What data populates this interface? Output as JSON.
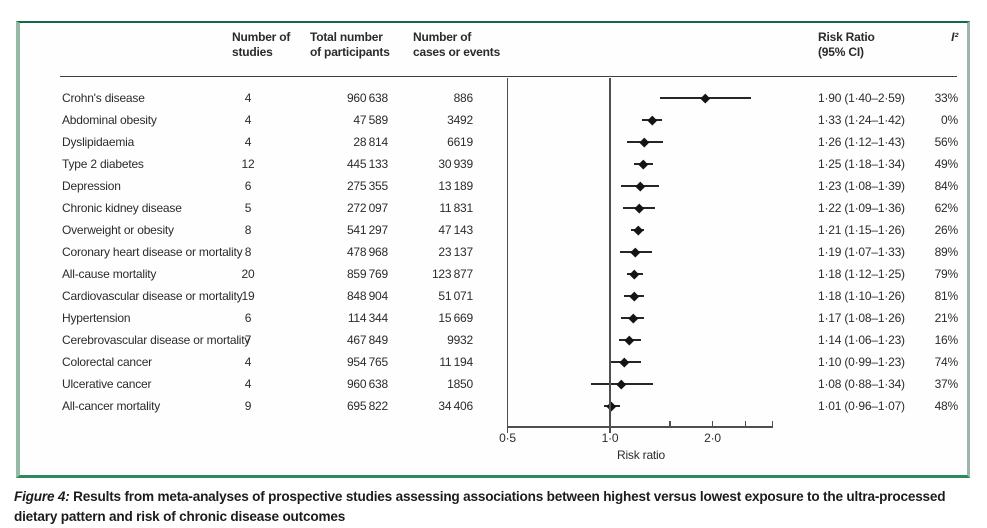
{
  "header": {
    "col_studies": "Number of\nstudies",
    "col_participants": "Total number\nof participants",
    "col_cases": "Number of\ncases or events",
    "col_rr": "Risk Ratio\n(95% CI)",
    "col_i2": "I²"
  },
  "caption": {
    "prefix": "Figure 4:",
    "text": " Results from meta-analyses of prospective studies assessing associations between highest versus lowest exposure to the ultra-processed dietary pattern and risk of chronic disease outcomes"
  },
  "colors": {
    "frame_top": "#11694a",
    "frame_sides": "#92bca6",
    "frame_bottom": "#2c8a5c",
    "line": "#4f4f4f",
    "marker": "#141414",
    "text": "#2b2b2b"
  },
  "chart_data": {
    "type": "scatter",
    "subtype": "forest-plot",
    "xlabel": "Risk ratio",
    "x_scale": "log",
    "xlim": [
      0.5,
      3.0
    ],
    "ref_line": 1.0,
    "ticks": [
      {
        "v": 0.5,
        "label": "0·5",
        "full": true
      },
      {
        "v": 1.0,
        "label": "1·0",
        "full": true
      },
      {
        "v": 1.5
      },
      {
        "v": 2.0,
        "label": "2·0"
      },
      {
        "v": 2.5
      },
      {
        "v": 3.0
      }
    ],
    "rows": [
      {
        "label": "Crohn's disease",
        "studies": "4",
        "participants": "960 638",
        "cases": "886",
        "rr": 1.9,
        "lo": 1.4,
        "hi": 2.59,
        "rr_ci": "1·90 (1·40–2·59)",
        "i2": "33%"
      },
      {
        "label": "Abdominal obesity",
        "studies": "4",
        "participants": "47 589",
        "cases": "3492",
        "rr": 1.33,
        "lo": 1.24,
        "hi": 1.42,
        "rr_ci": "1·33 (1·24–1·42)",
        "i2": "0%"
      },
      {
        "label": "Dyslipidaemia",
        "studies": "4",
        "participants": "28 814",
        "cases": "6619",
        "rr": 1.26,
        "lo": 1.12,
        "hi": 1.43,
        "rr_ci": "1·26 (1·12–1·43)",
        "i2": "56%"
      },
      {
        "label": "Type 2 diabetes",
        "studies": "12",
        "participants": "445 133",
        "cases": "30 939",
        "rr": 1.25,
        "lo": 1.18,
        "hi": 1.34,
        "rr_ci": "1·25 (1·18–1·34)",
        "i2": "49%"
      },
      {
        "label": "Depression",
        "studies": "6",
        "participants": "275 355",
        "cases": "13 189",
        "rr": 1.23,
        "lo": 1.08,
        "hi": 1.39,
        "rr_ci": "1·23 (1·08–1·39)",
        "i2": "84%"
      },
      {
        "label": "Chronic kidney disease",
        "studies": "5",
        "participants": "272 097",
        "cases": "11 831",
        "rr": 1.22,
        "lo": 1.09,
        "hi": 1.36,
        "rr_ci": "1·22 (1·09–1·36)",
        "i2": "62%"
      },
      {
        "label": "Overweight or obesity",
        "studies": "8",
        "participants": "541 297",
        "cases": "47 143",
        "rr": 1.21,
        "lo": 1.15,
        "hi": 1.26,
        "rr_ci": "1·21 (1·15–1·26)",
        "i2": "26%"
      },
      {
        "label": "Coronary heart disease or mortality",
        "studies": "8",
        "participants": "478 968",
        "cases": "23 137",
        "rr": 1.19,
        "lo": 1.07,
        "hi": 1.33,
        "rr_ci": "1·19 (1·07–1·33)",
        "i2": "89%"
      },
      {
        "label": "All-cause mortality",
        "studies": "20",
        "participants": "859 769",
        "cases": "123 877",
        "rr": 1.18,
        "lo": 1.12,
        "hi": 1.25,
        "rr_ci": "1·18 (1·12–1·25)",
        "i2": "79%"
      },
      {
        "label": "Cardiovascular disease or mortality",
        "studies": "19",
        "participants": "848 904",
        "cases": "51 071",
        "rr": 1.18,
        "lo": 1.1,
        "hi": 1.26,
        "rr_ci": "1·18 (1·10–1·26)",
        "i2": "81%"
      },
      {
        "label": "Hypertension",
        "studies": "6",
        "participants": "114 344",
        "cases": "15 669",
        "rr": 1.17,
        "lo": 1.08,
        "hi": 1.26,
        "rr_ci": "1·17 (1·08–1·26)",
        "i2": "21%"
      },
      {
        "label": "Cerebrovascular disease or mortality",
        "studies": "7",
        "participants": "467 849",
        "cases": "9932",
        "rr": 1.14,
        "lo": 1.06,
        "hi": 1.23,
        "rr_ci": "1·14 (1·06–1·23)",
        "i2": "16%"
      },
      {
        "label": "Colorectal cancer",
        "studies": "4",
        "participants": "954 765",
        "cases": "11 194",
        "rr": 1.1,
        "lo": 0.99,
        "hi": 1.23,
        "rr_ci": "1·10 (0·99–1·23)",
        "i2": "74%"
      },
      {
        "label": "Ulcerative cancer",
        "studies": "4",
        "participants": "960 638",
        "cases": "1850",
        "rr": 1.08,
        "lo": 0.88,
        "hi": 1.34,
        "rr_ci": "1·08 (0·88–1·34)",
        "i2": "37%"
      },
      {
        "label": "All-cancer mortality",
        "studies": "9",
        "participants": "695 822",
        "cases": "34 406",
        "rr": 1.01,
        "lo": 0.96,
        "hi": 1.07,
        "rr_ci": "1·01 (0·96–1·07)",
        "i2": "48%"
      }
    ]
  }
}
